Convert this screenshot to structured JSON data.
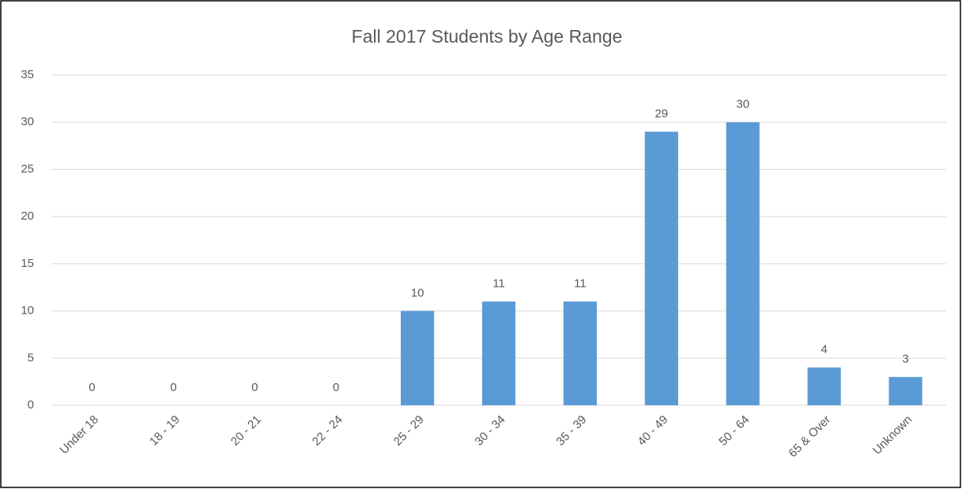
{
  "chart_data": {
    "type": "bar",
    "title": "Fall 2017 Students by Age Range",
    "categories": [
      "Under 18",
      "18 - 19",
      "20 - 21",
      "22 - 24",
      "25 - 29",
      "30 - 34",
      "35 - 39",
      "40 - 49",
      "50 - 64",
      "65 & Over",
      "Unknown"
    ],
    "values": [
      0,
      0,
      0,
      0,
      10,
      11,
      11,
      29,
      30,
      4,
      3
    ],
    "color": "#5b9bd5",
    "ylim": [
      0,
      35
    ],
    "yticks": [
      0,
      5,
      10,
      15,
      20,
      25,
      30,
      35
    ],
    "grid": true,
    "data_labels": true
  }
}
